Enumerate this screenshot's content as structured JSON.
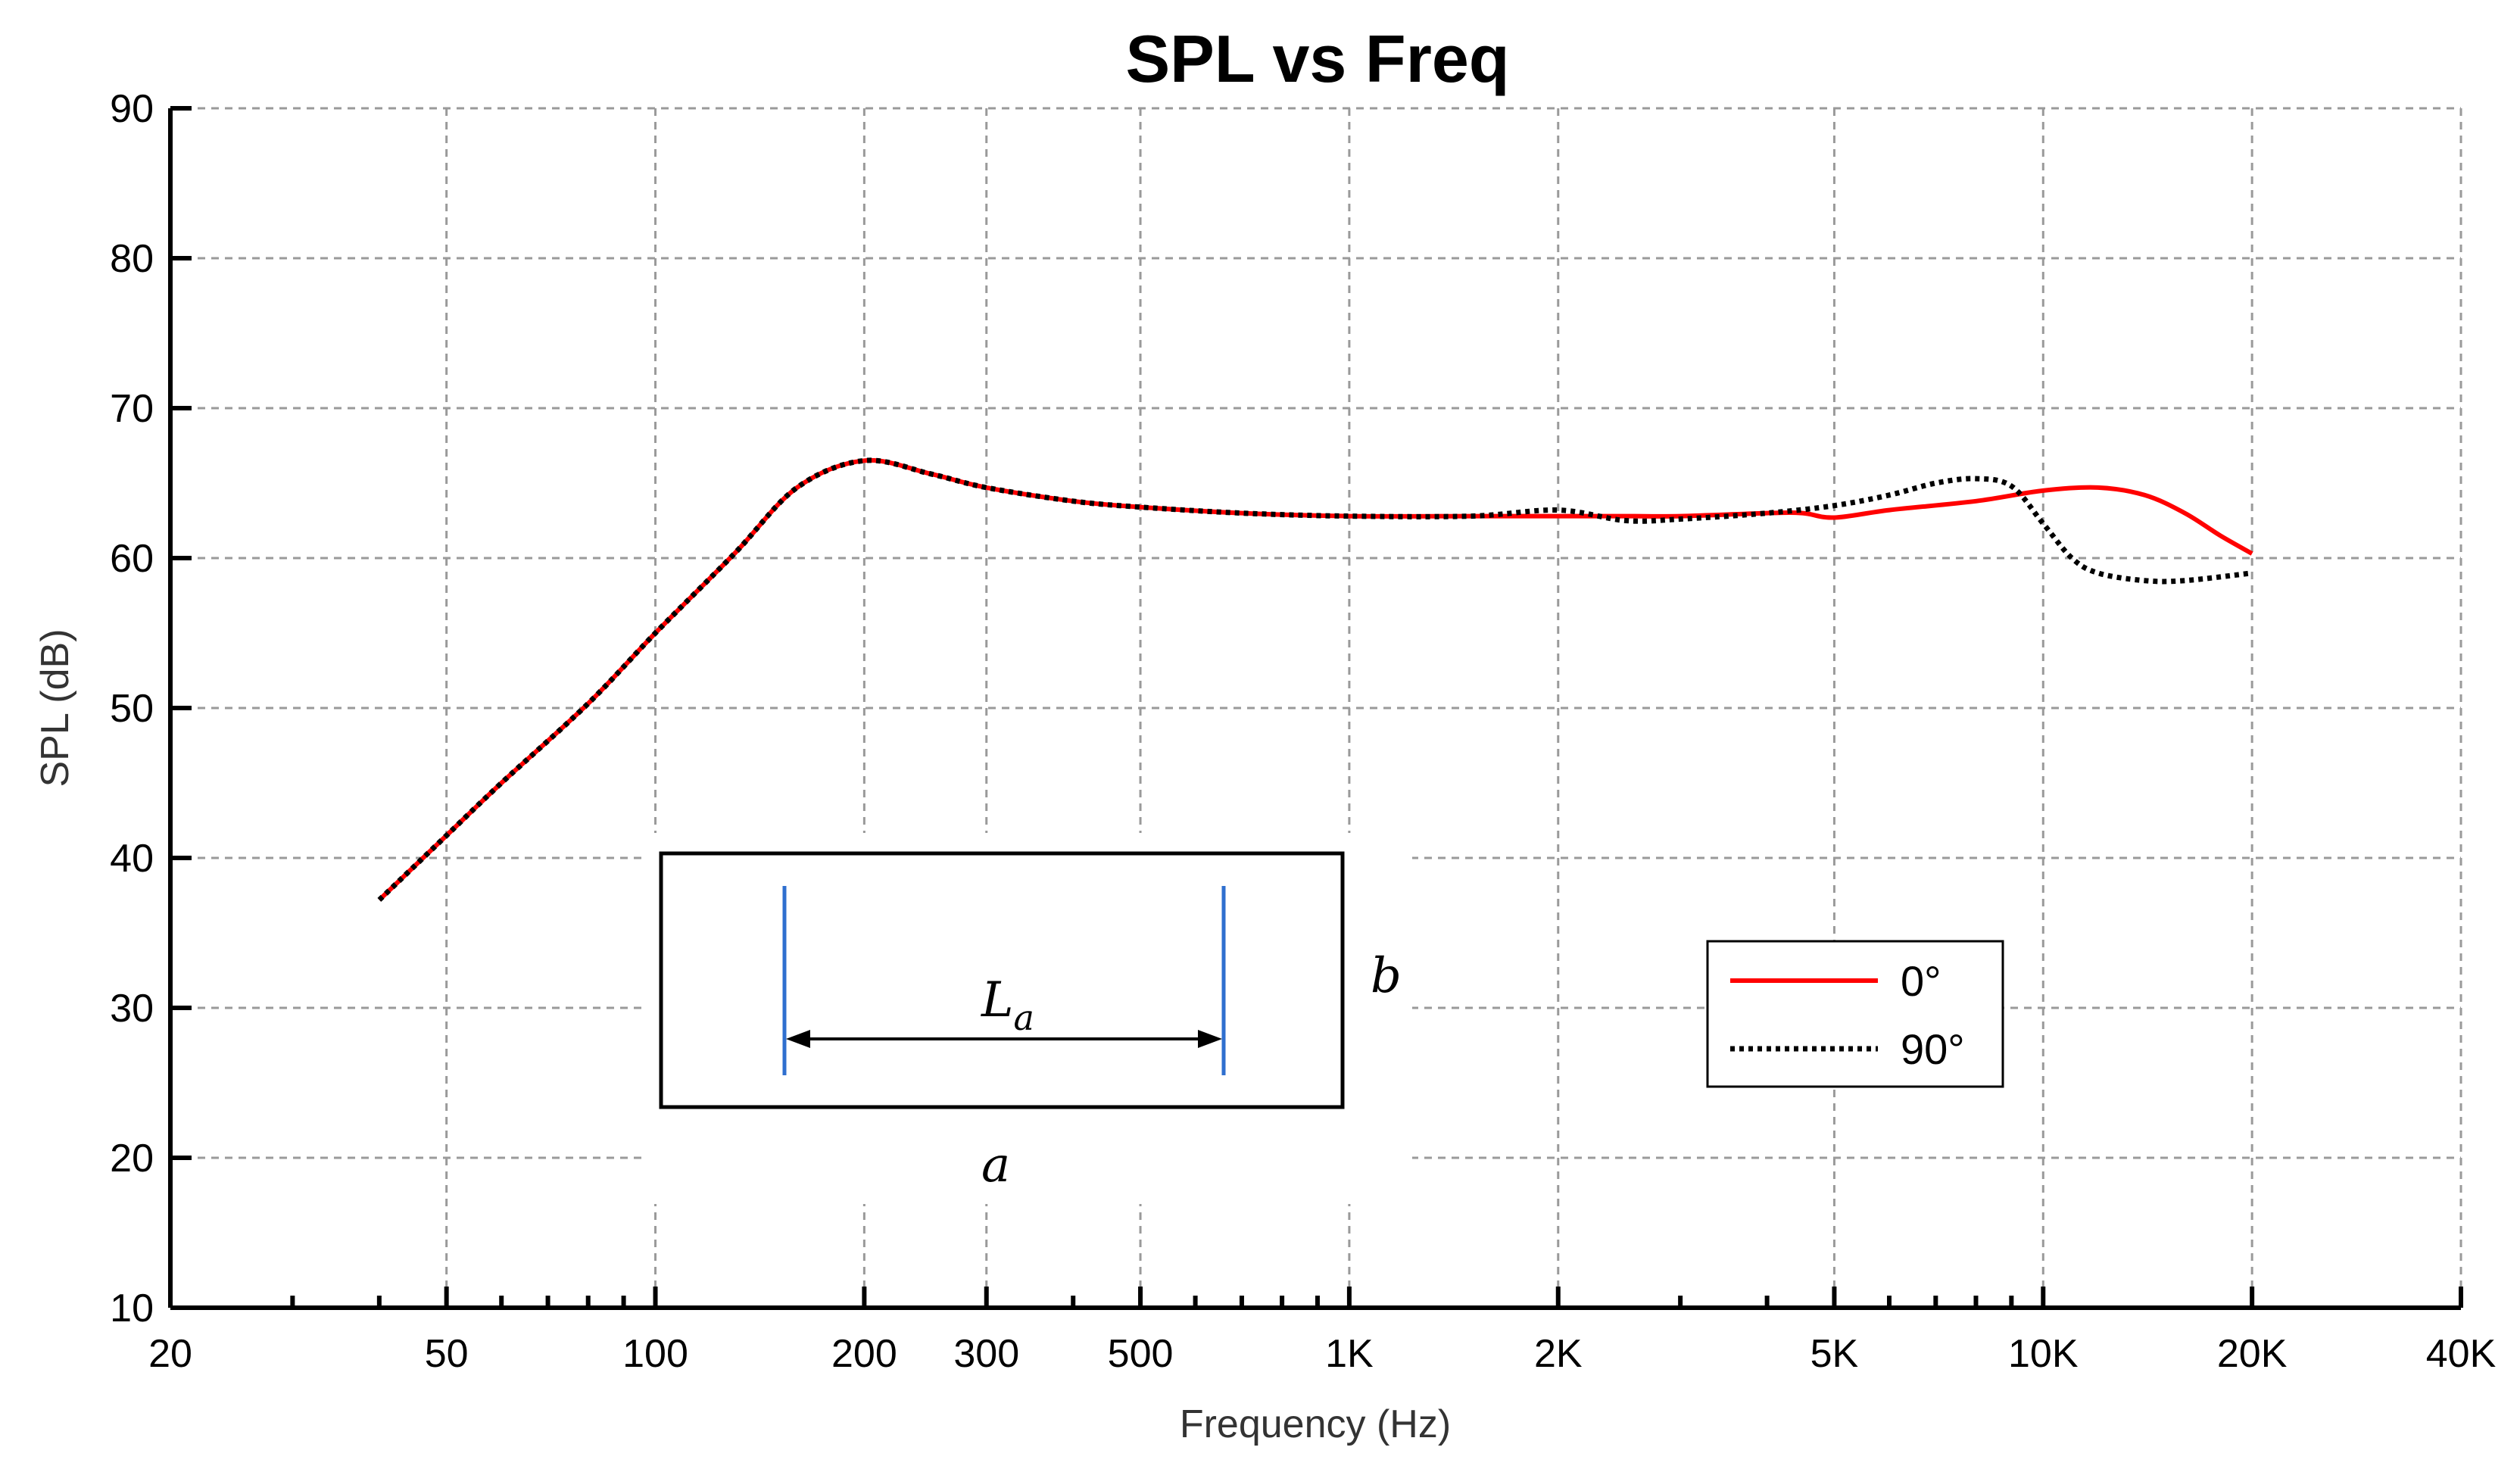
{
  "chart_data": {
    "type": "line",
    "title": "SPL vs Freq",
    "xlabel": "Frequency (Hz)",
    "ylabel": "SPL (dB)",
    "xscale": "log",
    "xlim": [
      20,
      40000
    ],
    "ylim": [
      10,
      90
    ],
    "grid": true,
    "yticks": [
      10,
      20,
      30,
      40,
      50,
      60,
      70,
      80,
      90
    ],
    "ytick_labels": [
      "10",
      "20",
      "30",
      "40",
      "50",
      "60",
      "70",
      "80",
      "90"
    ],
    "xticks": [
      20,
      50,
      100,
      200,
      300,
      500,
      1000,
      2000,
      5000,
      10000,
      20000,
      40000
    ],
    "xtick_labels": [
      "20",
      "50",
      "100",
      "200",
      "300",
      "500",
      "1K",
      "2K",
      "5K",
      "10K",
      "20K",
      "40K"
    ],
    "minor_xticks": [
      30,
      40,
      60,
      70,
      80,
      90,
      400,
      600,
      700,
      800,
      900,
      3000,
      4000,
      6000,
      7000,
      8000,
      9000
    ],
    "series": [
      {
        "name": "0°",
        "color": "#ff0000",
        "style": "solid",
        "x": [
          40,
          50,
          60,
          80,
          100,
          130,
          160,
          200,
          250,
          300,
          400,
          500,
          700,
          1000,
          1500,
          2000,
          2500,
          3000,
          4000,
          4500,
          5000,
          6000,
          8000,
          10000,
          12000,
          14000,
          16000,
          18000,
          20000
        ],
        "y": [
          37.2,
          41.5,
          45.0,
          50.3,
          55.0,
          60.3,
          64.7,
          66.5,
          65.6,
          64.7,
          63.8,
          63.4,
          63.0,
          62.8,
          62.8,
          62.8,
          62.8,
          62.8,
          63.0,
          63.0,
          62.7,
          63.2,
          63.8,
          64.5,
          64.7,
          64.2,
          63.0,
          61.5,
          60.3
        ]
      },
      {
        "name": "90°",
        "color": "#000000",
        "style": "dotted",
        "x": [
          40,
          50,
          60,
          80,
          100,
          130,
          160,
          200,
          250,
          300,
          400,
          500,
          700,
          1000,
          1500,
          2000,
          2500,
          3000,
          4000,
          5000,
          6000,
          7000,
          8000,
          9000,
          10000,
          11000,
          12000,
          14000,
          16000,
          20000
        ],
        "y": [
          37.2,
          41.5,
          45.0,
          50.3,
          55.0,
          60.3,
          64.7,
          66.5,
          65.6,
          64.7,
          63.8,
          63.4,
          63.0,
          62.8,
          62.8,
          63.2,
          62.5,
          62.6,
          63.0,
          63.5,
          64.2,
          65.0,
          65.3,
          64.8,
          62.3,
          60.0,
          59.0,
          58.5,
          58.5,
          59.0
        ]
      }
    ],
    "legend": {
      "position": "lower-right",
      "entries": [
        "0°",
        "90°"
      ]
    },
    "inset": {
      "length_label": "L",
      "length_subscript": "a",
      "side_a": "a",
      "side_b": "b"
    }
  }
}
